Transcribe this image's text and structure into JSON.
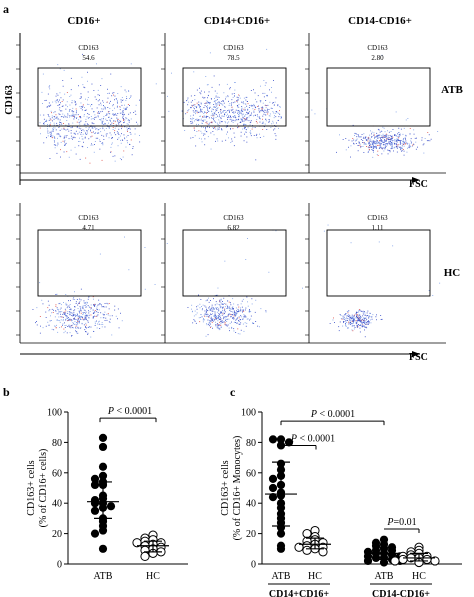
{
  "panel_a": {
    "label": "a",
    "column_titles": [
      "CD16+",
      "CD14+CD16+",
      "CD14-CD16+"
    ],
    "y_axis_label": "CD163",
    "x_axis_label": "FSC",
    "rows": [
      {
        "group": "ATB",
        "gates": [
          {
            "marker": "CD163",
            "value": "54.6"
          },
          {
            "marker": "CD163",
            "value": "78.5"
          },
          {
            "marker": "CD163",
            "value": "2.80"
          }
        ]
      },
      {
        "group": "HC",
        "gates": [
          {
            "marker": "CD163",
            "value": "4.71"
          },
          {
            "marker": "CD163",
            "value": "6.82"
          },
          {
            "marker": "CD163",
            "value": "1.11"
          }
        ]
      }
    ],
    "colors": {
      "dots": "#3a4fc9",
      "dots_alt": "#7fa0e8",
      "hot": "#e0504a"
    }
  },
  "chart_data": [
    {
      "type": "scatter",
      "label": "b",
      "ylabel_line1": "CD163+ cells",
      "ylabel_line2": "(% of CD16+ cells)",
      "ylim": [
        0,
        100
      ],
      "yticks": [
        "0",
        "20",
        "40",
        "60",
        "80",
        "100"
      ],
      "categories": [
        "ATB",
        "HC"
      ],
      "series": [
        {
          "name": "ATB",
          "marker": "filled-circle",
          "values": [
            83,
            77,
            64,
            58,
            56,
            54,
            52,
            52,
            45,
            43,
            42,
            40,
            40,
            38,
            37,
            35,
            30,
            28,
            25,
            22,
            20,
            10
          ],
          "mean": 41,
          "sd_low": 30,
          "sd_high": 54
        },
        {
          "name": "HC",
          "marker": "open-circle",
          "values": [
            19,
            17,
            16,
            15,
            14,
            14,
            13,
            12,
            11,
            10,
            9,
            8,
            7,
            5
          ],
          "mean": 12,
          "sd_low": 8,
          "sd_high": 15
        }
      ],
      "annotations": [
        {
          "text": "P < 0.0001"
        }
      ]
    },
    {
      "type": "scatter",
      "label": "c",
      "ylabel_line1": "CD163+ cells",
      "ylabel_line2": "(% of CD16+ Monocytes)",
      "ylim": [
        0,
        100
      ],
      "yticks": [
        "0",
        "20",
        "40",
        "60",
        "80",
        "100"
      ],
      "categories": [
        "ATB",
        "HC",
        "ATB",
        "HC"
      ],
      "group_labels": [
        "CD14+CD16+",
        "CD14-CD16+"
      ],
      "series": [
        {
          "name": "ATB",
          "group": "CD14+CD16+",
          "marker": "filled-circle",
          "values": [
            82,
            82,
            80,
            78,
            66,
            62,
            58,
            56,
            52,
            50,
            47,
            45,
            44,
            40,
            37,
            33,
            30,
            27,
            24,
            20,
            12,
            10
          ],
          "mean": 46,
          "sd_low": 25,
          "sd_high": 67
        },
        {
          "name": "HC",
          "group": "CD14+CD16+",
          "marker": "open-circle",
          "values": [
            22,
            20,
            18,
            16,
            15,
            14,
            13,
            12,
            11,
            11,
            10,
            9,
            8
          ],
          "mean": 13,
          "sd_low": 10,
          "sd_high": 17
        },
        {
          "name": "ATB",
          "group": "CD14-CD16+",
          "marker": "filled-circle",
          "values": [
            16,
            14,
            13,
            12,
            11,
            10,
            9,
            9,
            8,
            7,
            7,
            6,
            5,
            5,
            4,
            4,
            3,
            2,
            2,
            1
          ],
          "mean": 7,
          "sd_low": 3,
          "sd_high": 11
        },
        {
          "name": "HC",
          "group": "CD14-CD16+",
          "marker": "open-circle",
          "values": [
            11,
            9,
            8,
            7,
            6,
            5,
            5,
            4,
            4,
            3,
            3,
            2,
            2,
            1
          ],
          "mean": 4,
          "sd_low": 2,
          "sd_high": 7
        }
      ],
      "annotations": [
        {
          "text": "P < 0.0001"
        },
        {
          "text": "P < 0.0001"
        },
        {
          "text": "P=0.01"
        }
      ]
    }
  ]
}
